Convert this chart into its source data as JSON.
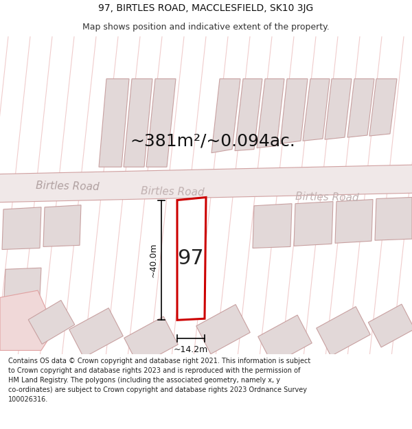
{
  "title_line1": "97, BIRTLES ROAD, MACCLESFIELD, SK10 3JG",
  "title_line2": "Map shows position and indicative extent of the property.",
  "area_label": "~381m²/~0.094ac.",
  "house_number": "97",
  "dim_height": "~40.0m",
  "dim_width": "~14.2m",
  "footer_text": "Contains OS data © Crown copyright and database right 2021. This information is subject to Crown copyright and database rights 2023 and is reproduced with the permission of HM Land Registry. The polygons (including the associated geometry, namely x, y co-ordinates) are subject to Crown copyright and database rights 2023 Ordnance Survey 100026316.",
  "map_bg": "#f8f4f4",
  "highlight_color": "#cc0000",
  "road_line_color": "#e8b0b0",
  "building_fill": "#e2d8d8",
  "building_outline": "#c8a0a0",
  "highlight_fill": "#ffffff",
  "road_label_color": "#b0a0a0",
  "title_fontsize": 10,
  "subtitle_fontsize": 9,
  "area_fontsize": 18,
  "number_fontsize": 22,
  "dim_fontsize": 9,
  "road_label_fontsize": 11
}
